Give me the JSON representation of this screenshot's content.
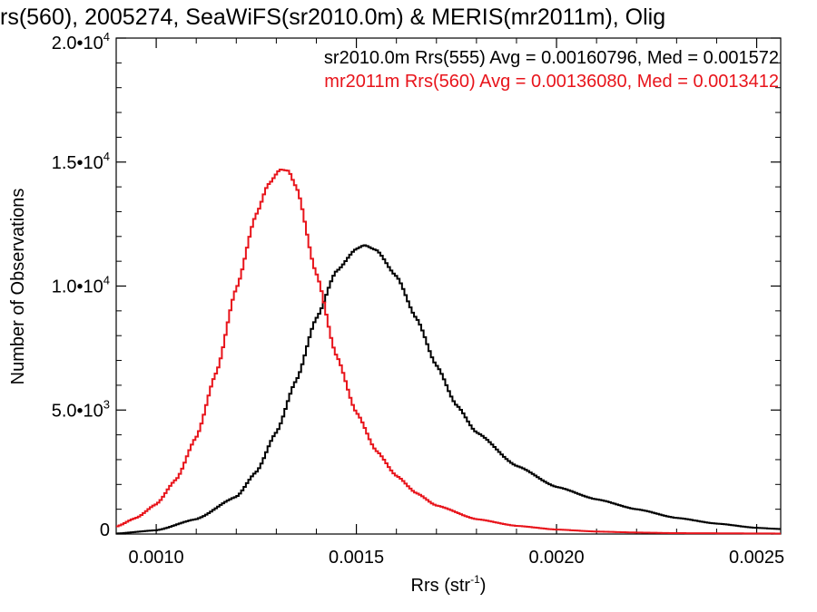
{
  "chart_data": {
    "type": "line",
    "title": "rs(560), 2005274, SeaWiFS(sr2010.0m) & MERIS(mr2011m), Olig",
    "xlabel_main": "Rrs (str",
    "xlabel_sup": "-1",
    "xlabel_close": ")",
    "ylabel": "Number of Observations",
    "xlim": [
      0.0009,
      0.00256
    ],
    "ylim": [
      0,
      20000
    ],
    "x_ticks": [
      {
        "value": 0.001,
        "label": "0.0010"
      },
      {
        "value": 0.0015,
        "label": "0.0015"
      },
      {
        "value": 0.002,
        "label": "0.0020"
      },
      {
        "value": 0.0025,
        "label": "0.0025"
      }
    ],
    "y_ticks": [
      {
        "value": 0,
        "mant": "0",
        "exp": ""
      },
      {
        "value": 5000,
        "mant": "5.0•10",
        "exp": "3"
      },
      {
        "value": 10000,
        "mant": "1.0•10",
        "exp": "4"
      },
      {
        "value": 15000,
        "mant": "1.5•10",
        "exp": "4"
      },
      {
        "value": 20000,
        "mant": "2.0•10",
        "exp": "4"
      }
    ],
    "legend_placement": "top-right",
    "series": [
      {
        "name": "sr2010.0m Rrs(555) Avg = 0.00160796, Med = 0.001572",
        "color": "#000000",
        "x": [
          0.0009,
          0.001,
          0.0011,
          0.0012,
          0.00125,
          0.0013,
          0.00135,
          0.0014,
          0.00145,
          0.0015,
          0.00152,
          0.00155,
          0.0016,
          0.00165,
          0.0017,
          0.00175,
          0.0018,
          0.0019,
          0.002,
          0.0021,
          0.0022,
          0.0023,
          0.0024,
          0.0025,
          0.00256
        ],
        "y": [
          20,
          150,
          600,
          1500,
          2500,
          4100,
          6200,
          8700,
          10600,
          11500,
          11650,
          11450,
          10400,
          8700,
          6800,
          5200,
          4100,
          2750,
          1900,
          1400,
          1000,
          650,
          420,
          250,
          200
        ]
      },
      {
        "name": "mr2011m Rrs(560) Avg = 0.00136080, Med = 0.0013412",
        "color": "#e8141b",
        "x": [
          0.0009,
          0.00095,
          0.001,
          0.00105,
          0.0011,
          0.00115,
          0.0012,
          0.00125,
          0.00128,
          0.00131,
          0.00133,
          0.00135,
          0.0014,
          0.00145,
          0.0015,
          0.00155,
          0.0016,
          0.00165,
          0.0017,
          0.0018,
          0.0019,
          0.002,
          0.0021,
          0.0022,
          0.0023,
          0.00256
        ],
        "y": [
          300,
          650,
          1200,
          2200,
          3900,
          6500,
          9900,
          12900,
          14100,
          14700,
          14650,
          14000,
          10500,
          7200,
          4900,
          3350,
          2350,
          1650,
          1150,
          600,
          330,
          180,
          100,
          60,
          35,
          20
        ]
      }
    ]
  }
}
